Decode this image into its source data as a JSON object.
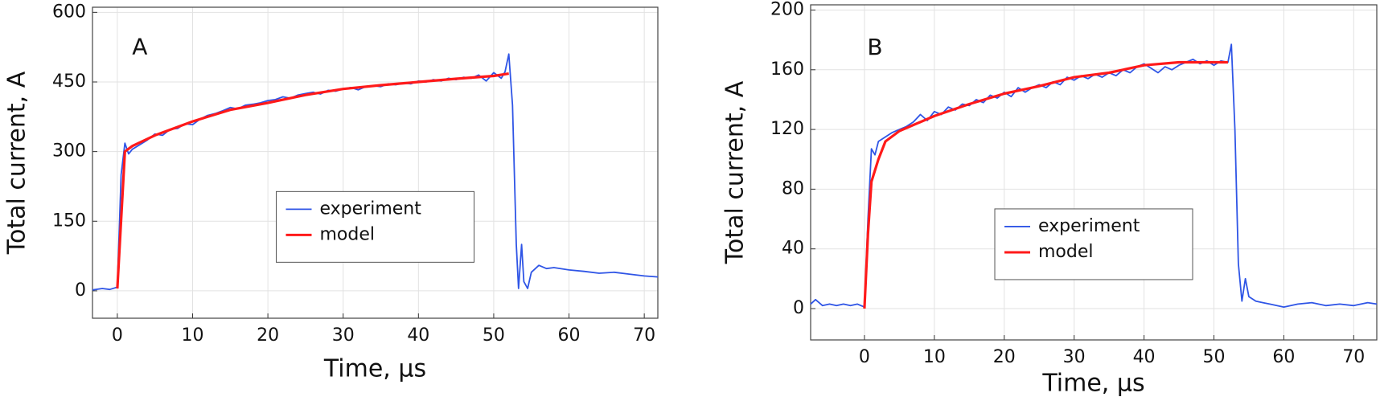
{
  "chart_data": [
    {
      "type": "line",
      "annotation": "A",
      "xlabel": "Time, µs",
      "ylabel": "Total current, A",
      "xlim": [
        -3.3,
        71.8
      ],
      "ylim": [
        -59,
        611
      ],
      "xticks": [
        0,
        10,
        20,
        30,
        40,
        50,
        60,
        70
      ],
      "yticks": [
        0,
        150,
        300,
        450,
        600
      ],
      "grid": true,
      "legend": "lower center",
      "series": [
        {
          "name": "experiment",
          "color": "#2f55e6",
          "x": [
            -3.3,
            -2,
            -1,
            0,
            0.5,
            1,
            1.5,
            2,
            3,
            4,
            5,
            6,
            7,
            8,
            9,
            10,
            11,
            12,
            13,
            14,
            15,
            16,
            17,
            18,
            19,
            20,
            21,
            22,
            23,
            24,
            25,
            26,
            27,
            28,
            29,
            30,
            31,
            32,
            33,
            34,
            35,
            36,
            37,
            38,
            39,
            40,
            41,
            42,
            43,
            44,
            45,
            46,
            47,
            48,
            49,
            50,
            51,
            51.5,
            52,
            52.5,
            53,
            53.3,
            53.7,
            54,
            54.5,
            55,
            56,
            57,
            58,
            60,
            62,
            64,
            66,
            68,
            70,
            71.8
          ],
          "values": [
            2,
            5,
            3,
            8,
            250,
            318,
            295,
            305,
            315,
            325,
            338,
            335,
            348,
            350,
            360,
            358,
            370,
            378,
            382,
            388,
            395,
            392,
            400,
            402,
            405,
            410,
            412,
            418,
            415,
            422,
            425,
            428,
            424,
            432,
            430,
            435,
            438,
            433,
            440,
            442,
            440,
            446,
            444,
            448,
            446,
            452,
            450,
            455,
            452,
            458,
            455,
            460,
            458,
            465,
            452,
            470,
            458,
            472,
            510,
            400,
            100,
            5,
            100,
            20,
            5,
            40,
            55,
            48,
            50,
            45,
            42,
            38,
            40,
            36,
            32,
            30
          ]
        },
        {
          "name": "model",
          "color": "#ff1a1a",
          "x": [
            0,
            1,
            2,
            5,
            10,
            15,
            20,
            25,
            30,
            35,
            40,
            45,
            50,
            52
          ],
          "values": [
            5,
            300,
            312,
            335,
            365,
            390,
            405,
            422,
            435,
            443,
            450,
            457,
            463,
            468
          ]
        }
      ]
    },
    {
      "type": "line",
      "annotation": "B",
      "xlabel": "Time, µs",
      "ylabel": "Total current, A",
      "xlim": [
        -7.7,
        73.3
      ],
      "ylim": [
        -21,
        203.5
      ],
      "xticks": [
        0,
        10,
        20,
        30,
        40,
        50,
        60,
        70
      ],
      "yticks": [
        0,
        40,
        80,
        120,
        160,
        200
      ],
      "grid": true,
      "legend": "lower center",
      "series": [
        {
          "name": "experiment",
          "color": "#2f55e6",
          "x": [
            -7.7,
            -7,
            -6,
            -5,
            -4,
            -3,
            -2,
            -1,
            0,
            0.5,
            1,
            1.5,
            2,
            3,
            4,
            5,
            6,
            7,
            8,
            9,
            10,
            11,
            12,
            13,
            14,
            15,
            16,
            17,
            18,
            19,
            20,
            21,
            22,
            23,
            24,
            25,
            26,
            27,
            28,
            29,
            30,
            31,
            32,
            33,
            34,
            35,
            36,
            37,
            38,
            39,
            40,
            41,
            42,
            43,
            44,
            45,
            46,
            47,
            48,
            49,
            50,
            51,
            52,
            52.5,
            53,
            53.5,
            54,
            54.5,
            55,
            56,
            57,
            58,
            59,
            60,
            62,
            64,
            66,
            68,
            70,
            72,
            73.3
          ],
          "values": [
            3,
            6,
            2,
            3,
            2,
            3,
            2,
            3,
            1,
            60,
            107,
            103,
            112,
            115,
            118,
            120,
            122,
            125,
            130,
            126,
            132,
            130,
            135,
            133,
            137,
            136,
            140,
            138,
            143,
            141,
            145,
            142,
            148,
            145,
            148,
            150,
            148,
            152,
            150,
            155,
            153,
            156,
            154,
            157,
            155,
            158,
            156,
            160,
            158,
            162,
            164,
            161,
            158,
            162,
            160,
            163,
            165,
            167,
            164,
            166,
            163,
            166,
            165,
            177,
            120,
            30,
            5,
            20,
            8,
            5,
            4,
            3,
            2,
            1,
            3,
            4,
            2,
            3,
            2,
            4,
            3
          ]
        },
        {
          "name": "model",
          "color": "#ff1a1a",
          "x": [
            0,
            0.5,
            1,
            2,
            3,
            5,
            10,
            15,
            20,
            25,
            30,
            35,
            40,
            45,
            50,
            52
          ],
          "values": [
            0,
            50,
            85,
            100,
            112,
            119,
            129,
            137,
            144,
            149,
            155,
            158,
            163,
            165,
            165,
            165
          ]
        }
      ]
    }
  ]
}
